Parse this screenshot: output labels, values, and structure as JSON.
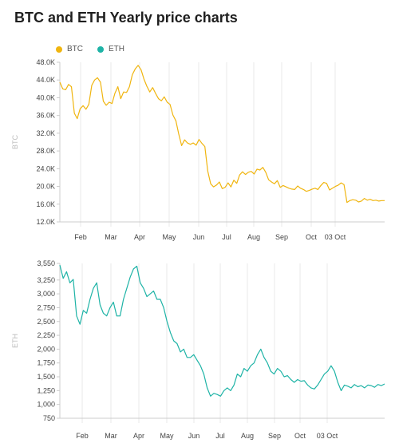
{
  "title": "BTC and ETH Yearly price charts",
  "legend": [
    {
      "name": "BTC",
      "color": "#f0b50f"
    },
    {
      "name": "ETH",
      "color": "#1eb3a6"
    }
  ],
  "chart_data": [
    {
      "type": "line",
      "ylabel": "BTC",
      "ylim": [
        12000,
        48000
      ],
      "yticks": [
        "48.0K",
        "44.0K",
        "40.0K",
        "36.0K",
        "32.0K",
        "28.0K",
        "24.0K",
        "20.0K",
        "16.0K",
        "12.0K"
      ],
      "xticks": [
        "Feb",
        "Mar",
        "Apr",
        "May",
        "Jun",
        "Jul",
        "Aug",
        "Sep",
        "Oct",
        "03 Oct"
      ],
      "color": "#f0b50f",
      "series": [
        {
          "name": "BTC",
          "values": [
            43500,
            42000,
            41800,
            43000,
            42500,
            36500,
            35300,
            37500,
            38200,
            37400,
            38500,
            42800,
            44000,
            44500,
            43500,
            39200,
            38300,
            39000,
            38700,
            41000,
            42500,
            39800,
            41300,
            41200,
            42500,
            45200,
            46500,
            47300,
            46300,
            44200,
            42600,
            41300,
            42300,
            41000,
            39800,
            39300,
            40200,
            39000,
            38500,
            36100,
            34800,
            31800,
            29200,
            30500,
            29800,
            29500,
            29800,
            29300,
            30600,
            29700,
            29000,
            23500,
            20600,
            19900,
            20300,
            21000,
            19500,
            19800,
            20800,
            19900,
            21400,
            20700,
            22600,
            23300,
            22700,
            23200,
            23400,
            22800,
            23900,
            23700,
            24300,
            23200,
            21500,
            21000,
            20600,
            21300,
            19800,
            20200,
            19900,
            19600,
            19400,
            19300,
            20100,
            19600,
            19300,
            18900,
            19100,
            19400,
            19600,
            19300,
            20200,
            20900,
            20700,
            19200,
            19600,
            20000,
            20300,
            20800,
            20400,
            16400,
            16800,
            17000,
            16900,
            16500,
            16700,
            17300,
            16900,
            17100,
            16800,
            16900,
            16700,
            16800,
            16800
          ]
        }
      ]
    },
    {
      "type": "line",
      "ylabel": "ETH",
      "ylim": [
        750,
        3550
      ],
      "yticks": [
        "3,550",
        "3,250",
        "3,000",
        "2,750",
        "2,500",
        "2,250",
        "2,000",
        "1,750",
        "1,500",
        "1,250",
        "1,000",
        "750"
      ],
      "xticks": [
        "Feb",
        "Mar",
        "Apr",
        "May",
        "Jun",
        "Jul",
        "Aug",
        "Sep",
        "Oct",
        "03 Oct"
      ],
      "color": "#1eb3a6",
      "series": [
        {
          "name": "ETH",
          "values": [
            3520,
            3280,
            3400,
            3200,
            3260,
            2600,
            2450,
            2700,
            2650,
            2900,
            3100,
            3200,
            2800,
            2650,
            2600,
            2750,
            2850,
            2600,
            2600,
            2900,
            3100,
            3300,
            3450,
            3500,
            3200,
            3100,
            2950,
            3000,
            3050,
            2900,
            2900,
            2750,
            2500,
            2300,
            2150,
            2100,
            1950,
            2000,
            1850,
            1850,
            1900,
            1800,
            1700,
            1550,
            1300,
            1150,
            1200,
            1180,
            1150,
            1250,
            1300,
            1250,
            1350,
            1550,
            1500,
            1650,
            1600,
            1700,
            1750,
            1900,
            2000,
            1850,
            1750,
            1600,
            1550,
            1650,
            1600,
            1500,
            1520,
            1450,
            1400,
            1450,
            1420,
            1430,
            1350,
            1300,
            1280,
            1350,
            1450,
            1550,
            1600,
            1700,
            1600,
            1400,
            1250,
            1350,
            1330,
            1300,
            1360,
            1320,
            1340,
            1300,
            1350,
            1340,
            1310,
            1360,
            1340,
            1370
          ]
        }
      ]
    }
  ]
}
